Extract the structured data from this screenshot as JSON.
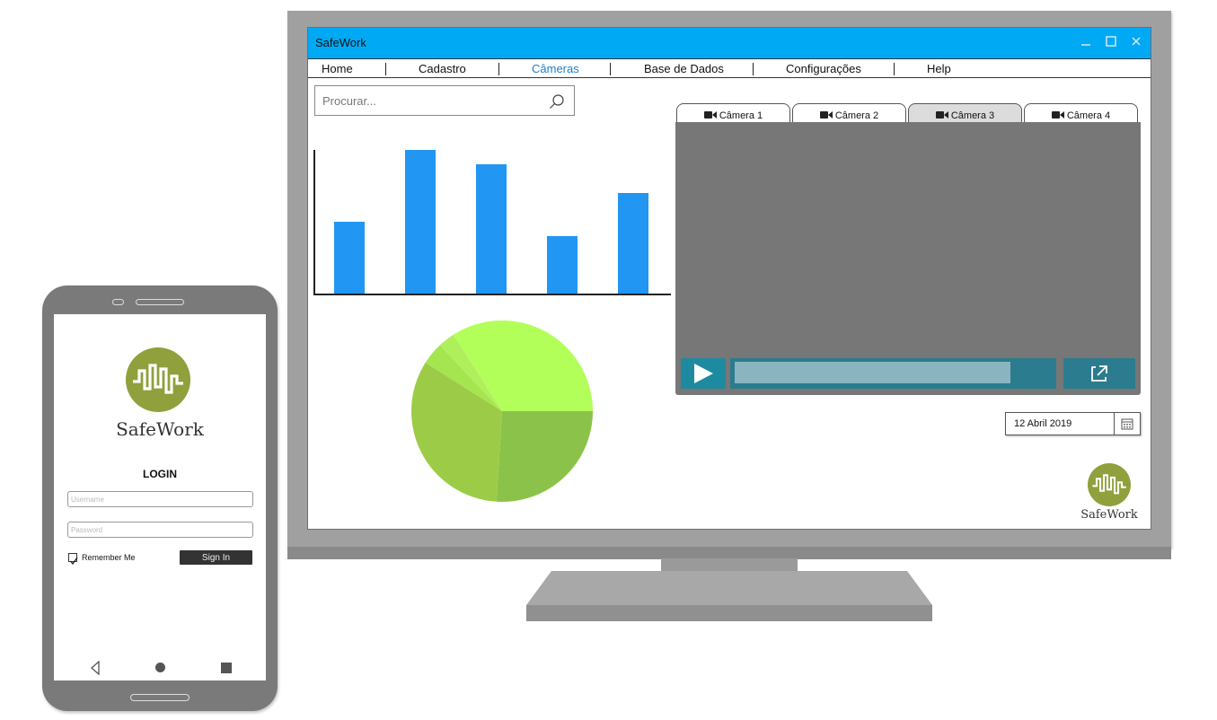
{
  "app": {
    "title": "SafeWork",
    "brand": "SafeWork"
  },
  "window_controls": [
    "minimize-icon",
    "maximize-icon",
    "close-icon"
  ],
  "menu": {
    "items": [
      {
        "label": "Home",
        "active": false
      },
      {
        "label": "Cadastro",
        "active": false
      },
      {
        "label": "Câmeras",
        "active": true
      },
      {
        "label": "Base de Dados",
        "active": false
      },
      {
        "label": "Configurações",
        "active": false
      },
      {
        "label": "Help",
        "active": false
      }
    ]
  },
  "search": {
    "placeholder": "Procurar...",
    "value": ""
  },
  "chart_data": [
    {
      "type": "bar",
      "title": "",
      "categories": [
        "",
        "",
        "",
        "",
        ""
      ],
      "values": [
        50,
        100,
        90,
        40,
        70
      ],
      "ylim": [
        0,
        100
      ],
      "grid": false,
      "color": "#2196f3"
    },
    {
      "type": "pie",
      "title": "",
      "values": [
        34,
        26,
        33,
        4,
        3
      ],
      "colors": [
        "#b2ff59",
        "#8bc34a",
        "#9ccc47",
        "#a5e550",
        "#b0ef5c"
      ]
    }
  ],
  "cameras": {
    "tabs": [
      {
        "label": "Câmera 1",
        "active": false
      },
      {
        "label": "Câmera 2",
        "active": false
      },
      {
        "label": "Câmera 3",
        "active": true
      },
      {
        "label": "Câmera 4",
        "active": false
      }
    ],
    "progress": 0.87
  },
  "date": {
    "value": "12 Abril 2019"
  },
  "colors": {
    "titlebar": "#00a9f4",
    "accent": "#1e7fc8",
    "logo": "#8fa03c",
    "video_controls": "#2b7c8e"
  },
  "phone": {
    "brand": "SafeWork",
    "login_title": "LOGIN",
    "username_placeholder": "Username",
    "password_placeholder": "Password",
    "remember_label": "Remember Me",
    "remember_checked": true,
    "signin_label": "Sign In"
  }
}
